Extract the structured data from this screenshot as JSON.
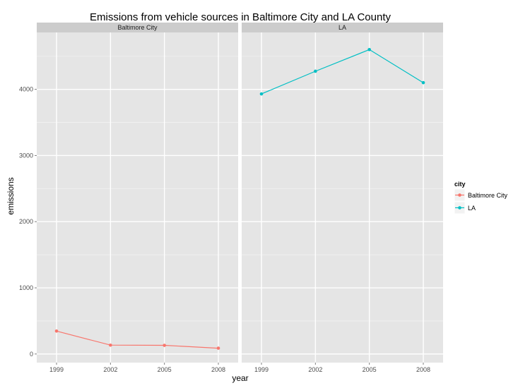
{
  "chart_data": {
    "type": "line",
    "title": "Emissions from vehicle sources in Baltimore City and LA County",
    "xlabel": "year",
    "ylabel": "emissions",
    "x": [
      1999,
      2002,
      2005,
      2008
    ],
    "x_tick_labels": [
      "1999",
      "2002",
      "2005",
      "2008"
    ],
    "xlim": [
      1997.9,
      2009.1
    ],
    "ylim": [
      -130,
      4860
    ],
    "y_ticks": [
      0,
      1000,
      2000,
      3000,
      4000
    ],
    "y_tick_labels": [
      "0",
      "1000",
      "2000",
      "3000",
      "4000"
    ],
    "facets": [
      "Baltimore City",
      "LA"
    ],
    "series": [
      {
        "name": "Baltimore City",
        "facet": "Baltimore City",
        "color": "#F8766D",
        "values": [
          347,
          134,
          131,
          88
        ]
      },
      {
        "name": "LA",
        "facet": "LA",
        "color": "#00BFC4",
        "values": [
          3931,
          4274,
          4601,
          4101
        ]
      }
    ],
    "legend": {
      "title": "city",
      "entries": [
        "Baltimore City",
        "LA"
      ],
      "position": "right"
    },
    "grid": true,
    "panel_background": "#E5E5E5",
    "strip_background": "#CCCCCC",
    "grid_major_color": "#FFFFFF",
    "grid_minor_color": "#F2F2F2"
  }
}
